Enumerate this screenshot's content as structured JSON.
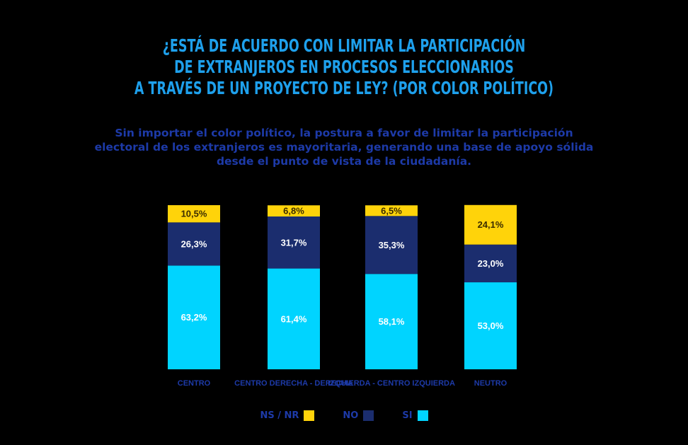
{
  "title": {
    "line1": "¿ESTÁ DE ACUERDO CON LIMITAR LA PARTICIPACIÓN",
    "line2": "DE EXTRANJEROS EN PROCESOS ELECCIONARIOS",
    "line3": "A TRAVÉS DE UN PROYECTO DE LEY? (POR COLOR POLÍTICO)"
  },
  "subtitle": {
    "line1": "Sin importar el color político, la postura a favor de limitar la participación",
    "line2": "electoral de los extranjeros es mayoritaria, generando una base de apoyo sólida",
    "line3": "desde el punto de vista de la ciudadanía."
  },
  "colors": {
    "si": "#00d4ff",
    "no": "#1b2d6e",
    "nsnr": "#ffd30a",
    "title": "#1ea0ec",
    "text": "#1d3aa8"
  },
  "legend": {
    "nsnr": "NS / NR",
    "no": "NO",
    "si": "SI"
  },
  "chart_data": {
    "type": "bar",
    "stacked": true,
    "categories": [
      "CENTRO",
      "CENTRO DERECHA - DERECHA",
      "IZQUIERDA - CENTRO IZQUIERDA",
      "NEUTRO"
    ],
    "series": [
      {
        "name": "SI",
        "key": "si",
        "values": [
          63.2,
          61.4,
          58.1,
          53.0
        ],
        "labels": [
          "63,2%",
          "61,4%",
          "58,1%",
          "53,0%"
        ]
      },
      {
        "name": "NO",
        "key": "no",
        "values": [
          26.3,
          31.7,
          35.3,
          23.0
        ],
        "labels": [
          "26,3%",
          "31,7%",
          "35,3%",
          "23,0%"
        ]
      },
      {
        "name": "NS / NR",
        "key": "nsnr",
        "values": [
          10.5,
          6.8,
          6.5,
          24.1
        ],
        "labels": [
          "10,5%",
          "6,8%",
          "6,5%",
          "24,1%"
        ]
      }
    ],
    "ylim": [
      0,
      100
    ],
    "legend_position": "bottom-center"
  }
}
